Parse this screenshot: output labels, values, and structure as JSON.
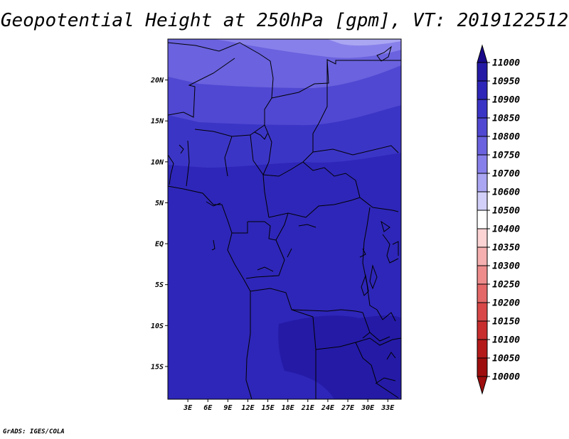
{
  "title": "Geopotential Height at 250hPa [gpm], VT: 2019122512",
  "credit": "GrADS: IGES/COLA",
  "map": {
    "lat_labels": [
      "20N",
      "15N",
      "10N",
      "5N",
      "EQ",
      "5S",
      "10S",
      "15S"
    ],
    "lat_values": [
      20,
      15,
      10,
      5,
      0,
      -5,
      -10,
      -15
    ],
    "lon_labels": [
      "3E",
      "6E",
      "9E",
      "12E",
      "15E",
      "18E",
      "21E",
      "24E",
      "27E",
      "30E",
      "33E"
    ],
    "lon_values": [
      3,
      6,
      9,
      12,
      15,
      18,
      21,
      24,
      27,
      30,
      33
    ]
  },
  "chart_data": {
    "type": "heatmap",
    "title": "Geopotential Height at 250hPa [gpm], VT: 2019122512",
    "colorbar_levels": [
      "11000",
      "10950",
      "10900",
      "10850",
      "10800",
      "10750",
      "10700",
      "10600",
      "10500",
      "10400",
      "10350",
      "10300",
      "10250",
      "10200",
      "10150",
      "10100",
      "10050",
      "10000"
    ],
    "colorbar_colors": [
      "#1a0a8a",
      "#241aa6",
      "#2e26b8",
      "#3b35c6",
      "#5048d2",
      "#6a62de",
      "#8880ea",
      "#aaa6f2",
      "#d2d0f8",
      "#ffffff",
      "#fcd4d4",
      "#f6b0b0",
      "#ee8c8c",
      "#e46868",
      "#d84848",
      "#c82e2e",
      "#b41a1a",
      "#9e0e0e"
    ],
    "xlim": [
      0,
      35
    ],
    "ylim": [
      -19,
      25
    ]
  }
}
